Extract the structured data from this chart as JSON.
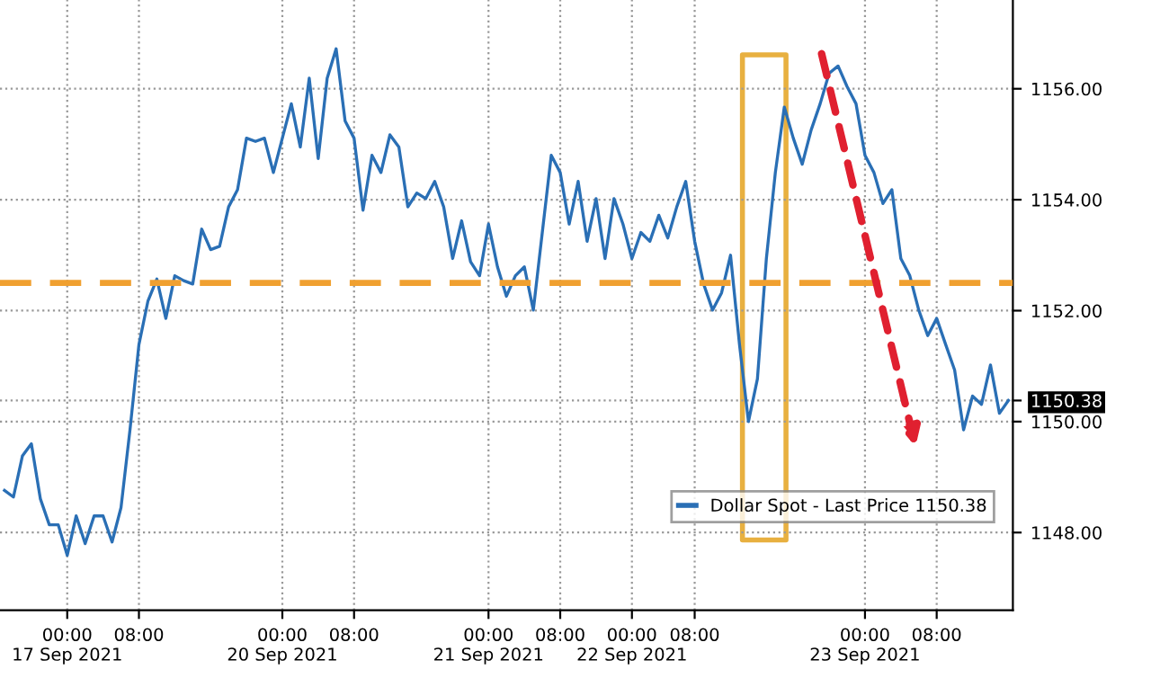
{
  "chart_data": {
    "type": "line",
    "categories": [
      null,
      null,
      null,
      null,
      null,
      null,
      null,
      "00:00\n17 Sep 2021",
      null,
      null,
      null,
      null,
      null,
      null,
      null,
      "08:00",
      null,
      null,
      null,
      null,
      null,
      null,
      null,
      null,
      null,
      null,
      null,
      null,
      null,
      null,
      null,
      "00:00\n20 Sep 2021",
      null,
      null,
      null,
      null,
      null,
      null,
      null,
      "08:00",
      null,
      null,
      null,
      null,
      null,
      null,
      null,
      null,
      null,
      null,
      null,
      null,
      null,
      null,
      "00:00\n21 Sep 2021",
      null,
      null,
      null,
      null,
      null,
      null,
      null,
      "08:00",
      null,
      null,
      null,
      null,
      null,
      null,
      null,
      "00:00\n22 Sep 2021",
      null,
      null,
      null,
      null,
      null,
      null,
      "08:00",
      null,
      null,
      null,
      null,
      null,
      null,
      null,
      null,
      null,
      null,
      null,
      null,
      null,
      null,
      null,
      null,
      null,
      null,
      "00:00\n23 Sep 2021",
      null,
      null,
      null,
      null,
      null,
      null,
      null,
      "08:00",
      null,
      null,
      null,
      null,
      null,
      null,
      null,
      null
    ],
    "series": [
      {
        "name": "Dollar Spot - Last Price 1150.38",
        "color": "#2a6fb5",
        "values": [
          1148.76,
          1148.64,
          1149.38,
          1149.6,
          1148.61,
          1148.14,
          1148.14,
          1147.59,
          1148.3,
          1147.8,
          1148.3,
          1148.3,
          1147.83,
          1148.45,
          1149.85,
          1151.39,
          1152.17,
          1152.57,
          1151.86,
          1152.63,
          1152.54,
          1152.48,
          1153.47,
          1153.1,
          1153.16,
          1153.87,
          1154.18,
          1155.11,
          1155.05,
          1155.11,
          1154.49,
          1155.11,
          1155.73,
          1154.95,
          1156.19,
          1154.74,
          1156.19,
          1156.72,
          1155.42,
          1155.11,
          1153.81,
          1154.8,
          1154.49,
          1155.17,
          1154.95,
          1153.87,
          1154.12,
          1154.02,
          1154.33,
          1153.87,
          1152.94,
          1153.62,
          1152.88,
          1152.63,
          1153.56,
          1152.79,
          1152.26,
          1152.63,
          1152.79,
          1152.01,
          1153.41,
          1154.8,
          1154.49,
          1153.56,
          1154.33,
          1153.25,
          1154.02,
          1152.94,
          1154.02,
          1153.56,
          1152.94,
          1153.41,
          1153.25,
          1153.72,
          1153.31,
          1153.87,
          1154.33,
          1153.25,
          1152.48,
          1152.01,
          1152.32,
          1153.0,
          1151.39,
          1150.0,
          1150.77,
          1152.94,
          1154.49,
          1155.67,
          1155.11,
          1154.64,
          1155.26,
          1155.73,
          1156.28,
          1156.41,
          1156.04,
          1155.73,
          1154.8,
          1154.49,
          1153.93,
          1154.18,
          1152.94,
          1152.63,
          1152.01,
          1151.55,
          1151.86,
          1151.39,
          1150.93,
          1149.85,
          1150.46,
          1150.31,
          1151.02,
          1150.15,
          1150.38
        ]
      }
    ],
    "ylim": [
      1146.6,
      1157.6
    ],
    "yticks": [
      {
        "value": 1148,
        "label": "1148.00"
      },
      {
        "value": 1150,
        "label": "1150.00"
      },
      {
        "value": 1150.38,
        "label": "1150.38"
      },
      {
        "value": 1152,
        "label": "1152.00"
      },
      {
        "value": 1154,
        "label": "1154.00"
      },
      {
        "value": 1156,
        "label": "1156.00"
      }
    ],
    "ref_lines": [
      {
        "axis": "y",
        "value": 1152.5,
        "color": "#f0a030",
        "line_style": "dashed"
      }
    ],
    "grid": true,
    "legend": "bottom right"
  }
}
